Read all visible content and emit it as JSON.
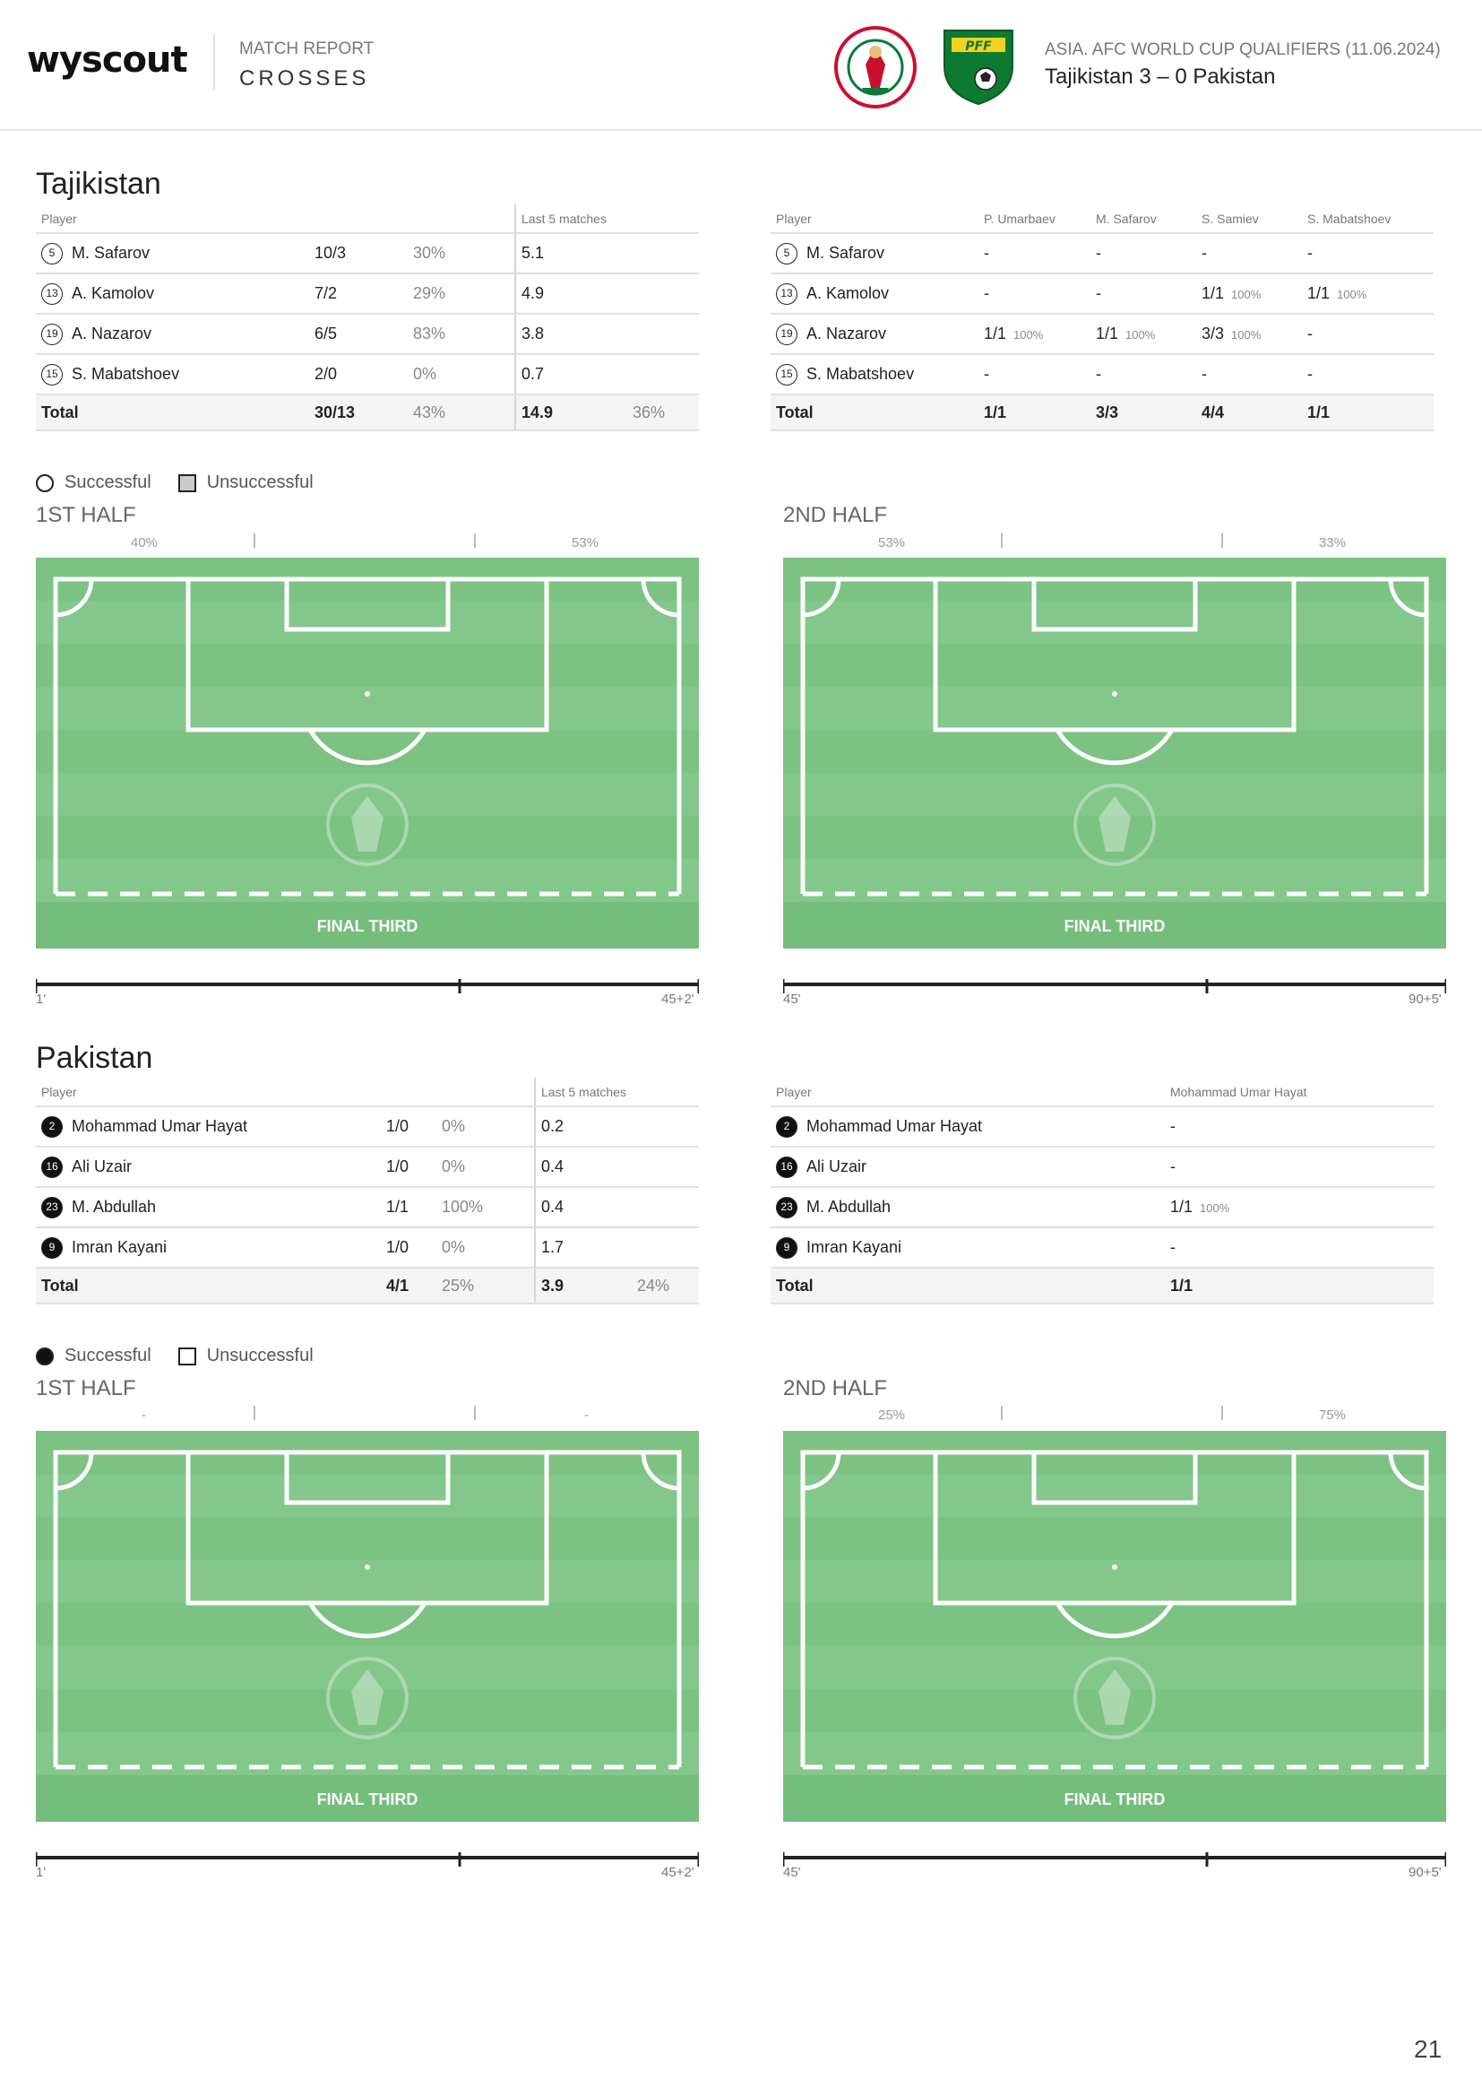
{
  "header": {
    "logo": "wyscout",
    "subtitle": "MATCH REPORT",
    "title": "CROSSES",
    "competition": "ASIA. AFC WORLD CUP QUALIFIERS (11.06.2024)",
    "score": "Tajikistan 3 – 0 Pakistan"
  },
  "legend": {
    "successful": "Successful",
    "unsuccessful": "Unsuccessful"
  },
  "labels": {
    "player": "Player",
    "last5": "Last 5 matches",
    "total": "Total",
    "first_half": "1ST HALF",
    "second_half": "2ND HALF",
    "final_third": "FINAL THIRD"
  },
  "tajikistan": {
    "name": "Tajikistan",
    "rows": [
      {
        "num": "5",
        "name": "M. Safarov",
        "crosses": "10/3",
        "pct": "30%",
        "last5": "5.1"
      },
      {
        "num": "13",
        "name": "A. Kamolov",
        "crosses": "7/2",
        "pct": "29%",
        "last5": "4.9"
      },
      {
        "num": "19",
        "name": "A. Nazarov",
        "crosses": "6/5",
        "pct": "83%",
        "last5": "3.8"
      },
      {
        "num": "15",
        "name": "S. Mabatshoev",
        "crosses": "2/0",
        "pct": "0%",
        "last5": "0.7"
      }
    ],
    "total": {
      "crosses": "30/13",
      "pct": "43%",
      "last5": "14.9",
      "last5_pct": "36%"
    },
    "recipients": [
      "P. Umarbaev",
      "M. Safarov",
      "S. Samiev",
      "S. Mabatshoev"
    ],
    "matrix": [
      [
        {
          "v": "-",
          "p": ""
        },
        {
          "v": "-",
          "p": ""
        },
        {
          "v": "-",
          "p": ""
        },
        {
          "v": "-",
          "p": ""
        }
      ],
      [
        {
          "v": "-",
          "p": ""
        },
        {
          "v": "-",
          "p": ""
        },
        {
          "v": "1/1",
          "p": "100%"
        },
        {
          "v": "1/1",
          "p": "100%"
        }
      ],
      [
        {
          "v": "1/1",
          "p": "100%"
        },
        {
          "v": "1/1",
          "p": "100%"
        },
        {
          "v": "3/3",
          "p": "100%"
        },
        {
          "v": "-",
          "p": ""
        }
      ],
      [
        {
          "v": "-",
          "p": ""
        },
        {
          "v": "-",
          "p": ""
        },
        {
          "v": "-",
          "p": ""
        },
        {
          "v": "-",
          "p": ""
        }
      ]
    ],
    "matrix_total": [
      "1/1",
      "3/3",
      "4/4",
      "1/1"
    ],
    "first_half": {
      "left_pct": "40%",
      "right_pct": "53%",
      "start": "1'",
      "end": "45+2'"
    },
    "second_half": {
      "left_pct": "53%",
      "right_pct": "33%",
      "start": "45'",
      "end": "90+5'"
    }
  },
  "pakistan": {
    "name": "Pakistan",
    "rows": [
      {
        "num": "2",
        "name": "Mohammad Umar Hayat",
        "crosses": "1/0",
        "pct": "0%",
        "last5": "0.2"
      },
      {
        "num": "16",
        "name": "Ali Uzair",
        "crosses": "1/0",
        "pct": "0%",
        "last5": "0.4"
      },
      {
        "num": "23",
        "name": "M. Abdullah",
        "crosses": "1/1",
        "pct": "100%",
        "last5": "0.4"
      },
      {
        "num": "9",
        "name": "Imran Kayani",
        "crosses": "1/0",
        "pct": "0%",
        "last5": "1.7"
      }
    ],
    "total": {
      "crosses": "4/1",
      "pct": "25%",
      "last5": "3.9",
      "last5_pct": "24%"
    },
    "recipient": "Mohammad Umar Hayat",
    "matrix": [
      {
        "v": "-",
        "p": ""
      },
      {
        "v": "-",
        "p": ""
      },
      {
        "v": "1/1",
        "p": "100%"
      },
      {
        "v": "-",
        "p": ""
      }
    ],
    "matrix_total": "1/1",
    "first_half": {
      "left_pct": "-",
      "right_pct": "-",
      "start": "1'",
      "end": "45+2'"
    },
    "second_half": {
      "left_pct": "25%",
      "right_pct": "75%",
      "start": "45'",
      "end": "90+5'"
    }
  },
  "page_number": "21"
}
